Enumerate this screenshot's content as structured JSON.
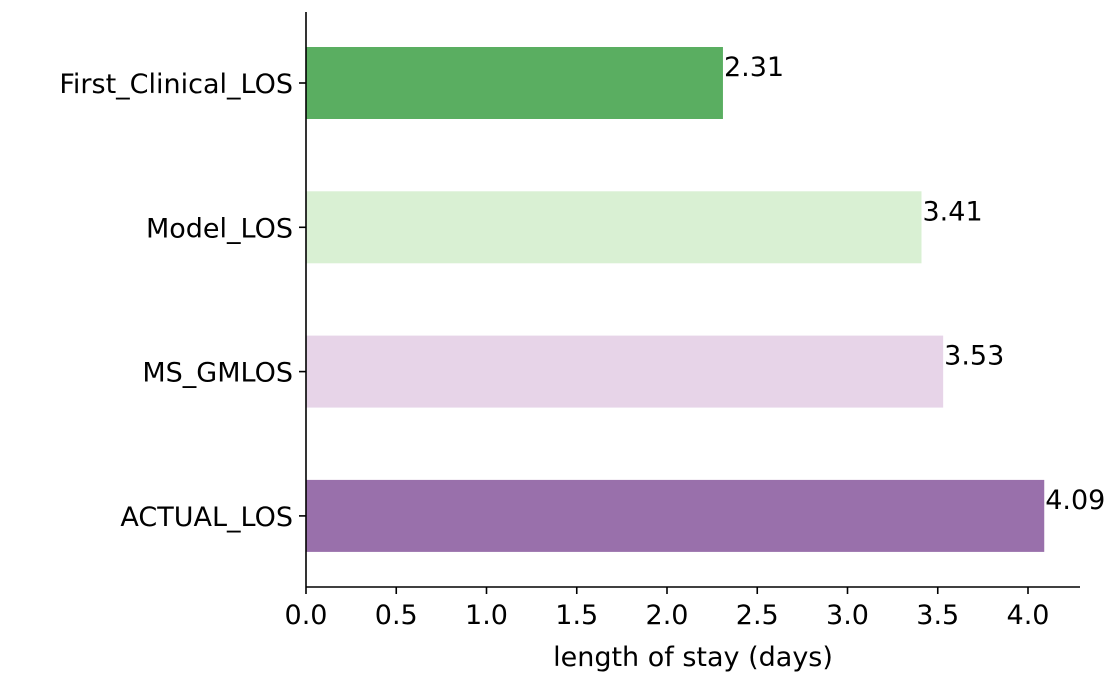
{
  "chart_data": {
    "type": "bar",
    "orientation": "horizontal",
    "categories": [
      "First_Clinical_LOS",
      "Model_LOS",
      "MS_GMLOS",
      "ACTUAL_LOS"
    ],
    "values": [
      2.31,
      3.41,
      3.53,
      4.09
    ],
    "value_labels": [
      "2.31",
      "3.41",
      "3.53",
      "4.09"
    ],
    "bar_colors": [
      "#5aae61",
      "#d9f0d3",
      "#e7d4e8",
      "#9970ab"
    ],
    "title": "",
    "xlabel": "length of stay (days)",
    "ylabel": "",
    "xlim": [
      0,
      4.3
    ],
    "xticks": [
      0.0,
      0.5,
      1.0,
      1.5,
      2.0,
      2.5,
      3.0,
      3.5,
      4.0
    ],
    "xtick_labels": [
      "0.0",
      "0.5",
      "1.0",
      "1.5",
      "2.0",
      "2.5",
      "3.0",
      "3.5",
      "4.0"
    ],
    "grid": false,
    "legend": false
  }
}
